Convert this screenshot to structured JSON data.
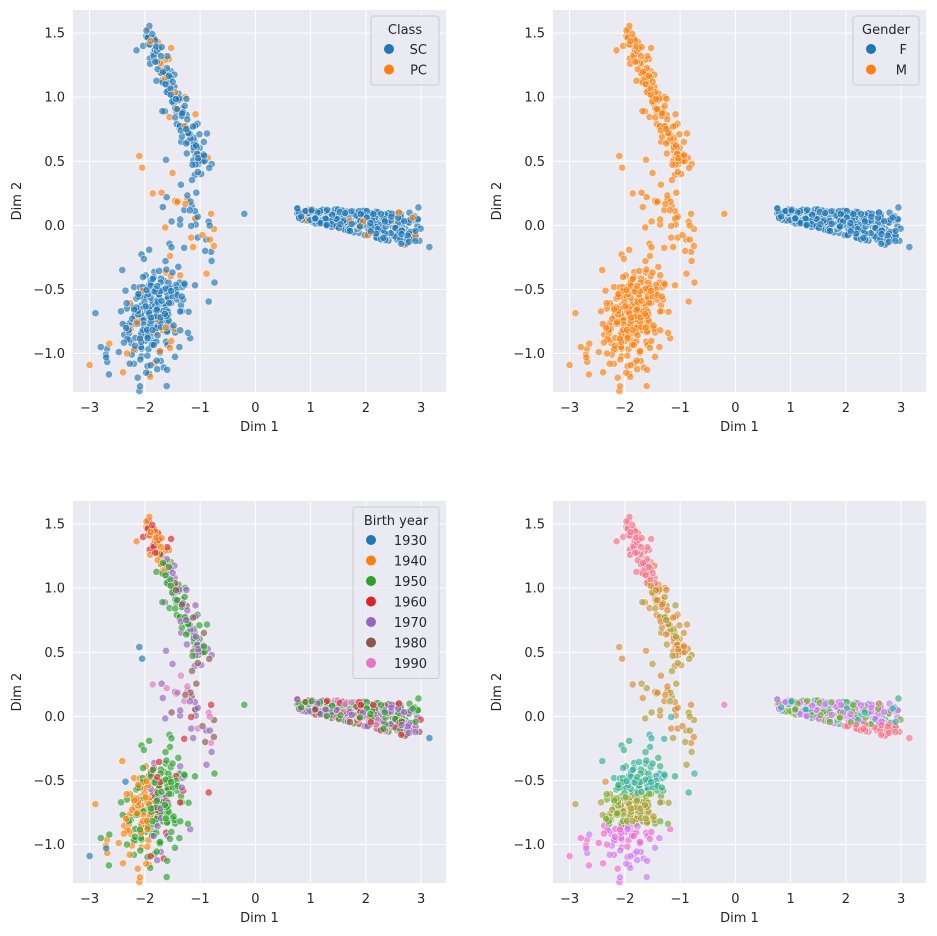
{
  "chart_data": [
    {
      "type": "scatter",
      "title": "",
      "xlabel": "Dim 1",
      "ylabel": "Dim 2",
      "xlim": [
        -3.3,
        3.45
      ],
      "ylim": [
        -1.3,
        1.68
      ],
      "xticks": [
        -3,
        -2,
        -1,
        0,
        1,
        2,
        3
      ],
      "yticks": [
        -1.0,
        -0.5,
        0.0,
        0.5,
        1.0,
        1.5
      ],
      "xtick_labels": [
        "−3",
        "−2",
        "−1",
        "0",
        "1",
        "2",
        "3"
      ],
      "ytick_labels": [
        "−1.0",
        "−0.5",
        "0.0",
        "0.5",
        "1.0",
        "1.5"
      ],
      "grid": true,
      "legend": {
        "title": "Class",
        "placement": "upper-right",
        "entries": [
          {
            "label": "SC",
            "color": "#1f77b4"
          },
          {
            "label": "PC",
            "color": "#ff7f0e"
          }
        ]
      },
      "hue": "class"
    },
    {
      "type": "scatter",
      "title": "",
      "xlabel": "Dim 1",
      "ylabel": "Dim 2",
      "xlim": [
        -3.3,
        3.45
      ],
      "ylim": [
        -1.3,
        1.68
      ],
      "xticks": [
        -3,
        -2,
        -1,
        0,
        1,
        2,
        3
      ],
      "yticks": [
        -1.0,
        -0.5,
        0.0,
        0.5,
        1.0,
        1.5
      ],
      "xtick_labels": [
        "−3",
        "−2",
        "−1",
        "0",
        "1",
        "2",
        "3"
      ],
      "ytick_labels": [
        "−1.0",
        "−0.5",
        "0.0",
        "0.5",
        "1.0",
        "1.5"
      ],
      "grid": true,
      "legend": {
        "title": "Gender",
        "placement": "upper-right",
        "entries": [
          {
            "label": "F",
            "color": "#1f77b4"
          },
          {
            "label": "M",
            "color": "#ff7f0e"
          }
        ]
      },
      "hue": "gender"
    },
    {
      "type": "scatter",
      "title": "",
      "xlabel": "Dim 1",
      "ylabel": "Dim 2",
      "xlim": [
        -3.3,
        3.45
      ],
      "ylim": [
        -1.3,
        1.68
      ],
      "xticks": [
        -3,
        -2,
        -1,
        0,
        1,
        2,
        3
      ],
      "yticks": [
        -1.0,
        -0.5,
        0.0,
        0.5,
        1.0,
        1.5
      ],
      "xtick_labels": [
        "−3",
        "−2",
        "−1",
        "0",
        "1",
        "2",
        "3"
      ],
      "ytick_labels": [
        "−1.0",
        "−0.5",
        "0.0",
        "0.5",
        "1.0",
        "1.5"
      ],
      "grid": true,
      "legend": {
        "title": "Birth year",
        "placement": "upper-right",
        "entries": [
          {
            "label": "1930",
            "color": "#1f77b4"
          },
          {
            "label": "1940",
            "color": "#ff7f0e"
          },
          {
            "label": "1950",
            "color": "#2ca02c"
          },
          {
            "label": "1960",
            "color": "#d62728"
          },
          {
            "label": "1970",
            "color": "#9467bd"
          },
          {
            "label": "1980",
            "color": "#8c564b"
          },
          {
            "label": "1990",
            "color": "#e377c2"
          }
        ]
      },
      "hue": "year"
    },
    {
      "type": "scatter",
      "title": "",
      "xlabel": "Dim 1",
      "ylabel": "Dim 2",
      "xlim": [
        -3.3,
        3.45
      ],
      "ylim": [
        -1.3,
        1.68
      ],
      "xticks": [
        -3,
        -2,
        -1,
        0,
        1,
        2,
        3
      ],
      "yticks": [
        -1.0,
        -0.5,
        0.0,
        0.5,
        1.0,
        1.5
      ],
      "xtick_labels": [
        "−3",
        "−2",
        "−1",
        "0",
        "1",
        "2",
        "3"
      ],
      "ytick_labels": [
        "−1.0",
        "−0.5",
        "0.0",
        "0.5",
        "1.0",
        "1.5"
      ],
      "grid": true,
      "legend": null,
      "hue": "cluster",
      "palette": [
        "#f77189",
        "#dc8932",
        "#ae9d31",
        "#77ab31",
        "#33b07a",
        "#36ada4",
        "#38a9c5",
        "#6e9bf4",
        "#cc7af4",
        "#f565cc"
      ]
    }
  ],
  "point_alpha": 0.65,
  "style": {
    "plot_bg": "#eaeaf2",
    "grid_color": "#ffffff",
    "text_color": "#262626"
  }
}
